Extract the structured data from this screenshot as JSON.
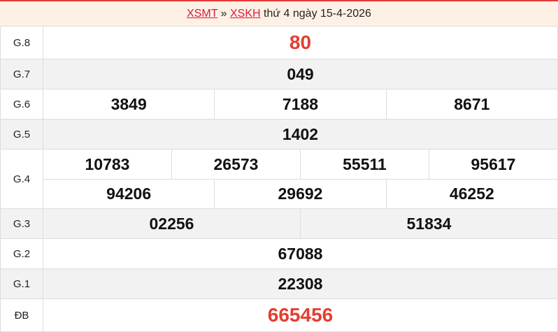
{
  "header": {
    "link1": "XSMT",
    "sep": " » ",
    "link2": "XSKH",
    "text": " thứ 4 ngày 15-4-2026"
  },
  "colors": {
    "accent": "#e53d30",
    "link": "#d81b3c",
    "header_bg": "#fdf1e6"
  },
  "prizes": [
    {
      "label": "G.8",
      "rows": [
        [
          "80"
        ]
      ],
      "highlight": true
    },
    {
      "label": "G.7",
      "rows": [
        [
          "049"
        ]
      ]
    },
    {
      "label": "G.6",
      "rows": [
        [
          "3849",
          "7188",
          "8671"
        ]
      ]
    },
    {
      "label": "G.5",
      "rows": [
        [
          "1402"
        ]
      ]
    },
    {
      "label": "G.4",
      "rows": [
        [
          "10783",
          "26573",
          "55511",
          "95617"
        ],
        [
          "94206",
          "29692",
          "46252"
        ]
      ]
    },
    {
      "label": "G.3",
      "rows": [
        [
          "02256",
          "51834"
        ]
      ]
    },
    {
      "label": "G.2",
      "rows": [
        [
          "67088"
        ]
      ]
    },
    {
      "label": "G.1",
      "rows": [
        [
          "22308"
        ]
      ]
    },
    {
      "label": "ĐB",
      "rows": [
        [
          "665456"
        ]
      ],
      "highlight": true
    }
  ]
}
